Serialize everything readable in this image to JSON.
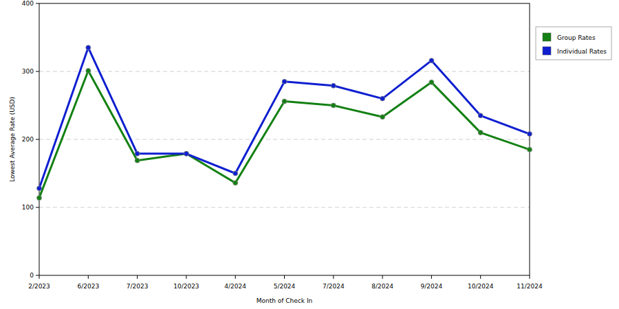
{
  "chart_data": {
    "type": "line",
    "x_label": "Month of Check In",
    "y_label": "Lowest Average Rate (USD)",
    "categories": [
      "2/2023",
      "6/2023",
      "7/2023",
      "10/2023",
      "4/2024",
      "5/2024",
      "7/2024",
      "8/2024",
      "9/2024",
      "10/2024",
      "11/2024"
    ],
    "series": [
      {
        "name": "Group Rates",
        "color": "#138013",
        "values": [
          114,
          301,
          169,
          179,
          136,
          256,
          250,
          233,
          284,
          210,
          185
        ]
      },
      {
        "name": "Individual Rates",
        "color": "#0f1fd0",
        "values": [
          128,
          335,
          179,
          179,
          150,
          285,
          279,
          260,
          316,
          235,
          208
        ]
      }
    ],
    "ylim": [
      0,
      400
    ],
    "yticks": [
      0,
      100,
      200,
      300,
      400
    ],
    "grid": true,
    "legend": "right",
    "marker": "circle"
  }
}
